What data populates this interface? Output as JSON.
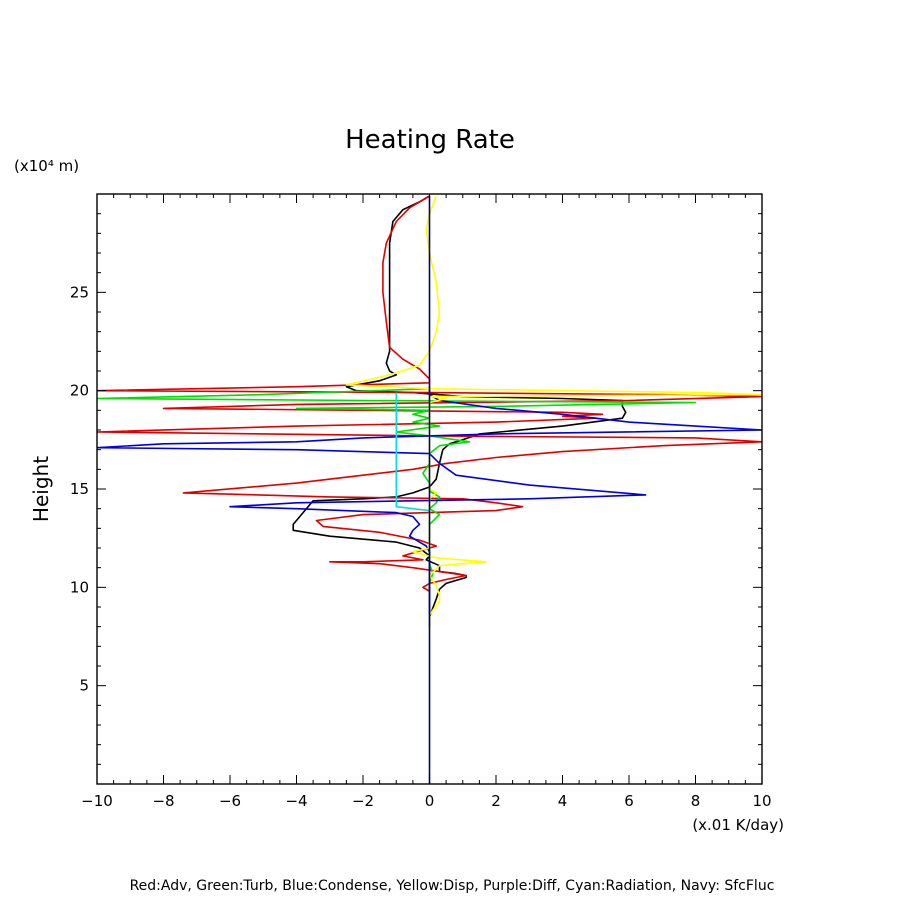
{
  "chart_data": {
    "type": "line",
    "title": "Heating Rate",
    "xlabel": "(x.01 K/day)",
    "ylabel": "Height",
    "yunit": "(x10⁴ m)",
    "legend_note": "Red:Adv, Green:Turb, Blue:Condense, Yellow:Disp, Purple:Diff, Cyan:Radiation, Navy: SfcFluc",
    "xlim": [
      -10,
      10
    ],
    "ylim": [
      0,
      30
    ],
    "xticks": [
      -10,
      -8,
      -6,
      -4,
      -2,
      0,
      2,
      4,
      6,
      8,
      10
    ],
    "yticks": [
      5,
      10,
      15,
      20,
      25
    ],
    "grid": false,
    "series": [
      {
        "name": "Adv",
        "color": "#000000",
        "points": [
          [
            0,
            29.9
          ],
          [
            -0.3,
            29.6
          ],
          [
            -0.8,
            29.2
          ],
          [
            -1.1,
            28.6
          ],
          [
            -1.2,
            27.5
          ],
          [
            -1.2,
            26
          ],
          [
            -1.2,
            24.5
          ],
          [
            -1.2,
            23
          ],
          [
            -1.2,
            22
          ],
          [
            -1.3,
            21.4
          ],
          [
            -1.2,
            21
          ],
          [
            -1.0,
            20.8
          ],
          [
            -1.5,
            20.5
          ],
          [
            -2.5,
            20.2
          ],
          [
            -2.2,
            20.0
          ],
          [
            -0.5,
            19.9
          ],
          [
            1,
            19.7
          ],
          [
            4,
            19.6
          ],
          [
            5.8,
            19.5
          ],
          [
            5.8,
            19.2
          ],
          [
            5.9,
            18.9
          ],
          [
            5.8,
            18.6
          ],
          [
            4,
            18.2
          ],
          [
            1.5,
            17.8
          ],
          [
            1.0,
            17.5
          ],
          [
            0.6,
            17.3
          ],
          [
            0.4,
            17.0
          ],
          [
            0.3,
            16.3
          ],
          [
            0.2,
            15.5
          ],
          [
            0,
            15.1
          ],
          [
            -0.5,
            14.8
          ],
          [
            -1.0,
            14.6
          ],
          [
            -2,
            14.5
          ],
          [
            -3.5,
            14.4
          ],
          [
            -3.8,
            13.8
          ],
          [
            -4.1,
            13.2
          ],
          [
            -4.1,
            12.9
          ],
          [
            -3,
            12.6
          ],
          [
            -1,
            12.3
          ],
          [
            -0.3,
            12.0
          ],
          [
            0,
            11.6
          ],
          [
            -0.1,
            11.4
          ],
          [
            0.3,
            11.1
          ],
          [
            0.3,
            10.8
          ],
          [
            0.8,
            10.7
          ],
          [
            1.1,
            10.6
          ],
          [
            1.1,
            10.5
          ],
          [
            0.5,
            10.2
          ],
          [
            0.3,
            9.9
          ],
          [
            0.2,
            9.4
          ],
          [
            0,
            8.5
          ],
          [
            0,
            8
          ]
        ]
      },
      {
        "name": "Adv",
        "color": "#e00000",
        "points": [
          [
            0,
            29.9
          ],
          [
            -0.6,
            29.3
          ],
          [
            -1,
            28.6
          ],
          [
            -1.3,
            27.5
          ],
          [
            -1.4,
            26.5
          ],
          [
            -1.4,
            25
          ],
          [
            -1.3,
            23.5
          ],
          [
            -1.2,
            22.2
          ],
          [
            -0.8,
            21.6
          ],
          [
            -0.3,
            21.1
          ],
          [
            0,
            20.6
          ],
          [
            0,
            20.4
          ],
          [
            -4,
            20.2
          ],
          [
            -10,
            20.0
          ],
          [
            0,
            19.9
          ],
          [
            7,
            19.8
          ],
          [
            10,
            19.7
          ],
          [
            6,
            19.5
          ],
          [
            -4,
            19.3
          ],
          [
            -8,
            19.1
          ],
          [
            -2,
            19.0
          ],
          [
            4,
            18.9
          ],
          [
            5.2,
            18.8
          ],
          [
            4,
            18.7
          ],
          [
            5,
            18.6
          ],
          [
            2,
            18.4
          ],
          [
            -4,
            18.2
          ],
          [
            -10,
            17.9
          ],
          [
            0,
            17.7
          ],
          [
            8,
            17.6
          ],
          [
            10,
            17.4
          ],
          [
            7,
            17.2
          ],
          [
            4,
            16.9
          ],
          [
            2,
            16.6
          ],
          [
            0.5,
            16.3
          ],
          [
            -0.5,
            16.0
          ],
          [
            -2,
            15.7
          ],
          [
            -4,
            15.3
          ],
          [
            -7.4,
            14.8
          ],
          [
            -3,
            14.6
          ],
          [
            1,
            14.5
          ],
          [
            2,
            14.3
          ],
          [
            2.8,
            14.1
          ],
          [
            2,
            13.9
          ],
          [
            0,
            13.8
          ],
          [
            -2,
            13.7
          ],
          [
            -3.4,
            13.4
          ],
          [
            -3.2,
            13.1
          ],
          [
            -1.5,
            12.8
          ],
          [
            -0.3,
            12.4
          ],
          [
            0.2,
            12.1
          ],
          [
            -0.8,
            11.6
          ],
          [
            -0.2,
            11.4
          ],
          [
            -2,
            11.3
          ],
          [
            -3,
            11.3
          ],
          [
            -1.5,
            11.2
          ],
          [
            -0.5,
            11.0
          ],
          [
            0.3,
            10.8
          ],
          [
            1.1,
            10.6
          ],
          [
            0.5,
            10.4
          ],
          [
            0,
            10.2
          ],
          [
            -0.2,
            10.0
          ],
          [
            0,
            9.8
          ]
        ]
      },
      {
        "name": "Turb",
        "color": "#00e000",
        "points": [
          [
            0,
            20.1
          ],
          [
            -5,
            19.8
          ],
          [
            -10,
            19.6
          ],
          [
            -2,
            19.5
          ],
          [
            8,
            19.4
          ],
          [
            2,
            19.2
          ],
          [
            -4,
            19.1
          ],
          [
            0,
            19.0
          ],
          [
            -0.5,
            18.8
          ],
          [
            0,
            18.6
          ],
          [
            -0.5,
            18.4
          ],
          [
            0.3,
            18.2
          ],
          [
            -1,
            17.9
          ],
          [
            0,
            17.7
          ],
          [
            1.2,
            17.4
          ],
          [
            0.3,
            17.2
          ],
          [
            0,
            16.8
          ],
          [
            0,
            16.3
          ],
          [
            -0.2,
            15.8
          ],
          [
            0,
            15.3
          ],
          [
            0,
            14.9
          ],
          [
            0.3,
            14.6
          ],
          [
            0.2,
            14.3
          ],
          [
            0,
            14.0
          ],
          [
            0.3,
            13.7
          ],
          [
            0,
            13.2
          ],
          [
            0,
            12.7
          ],
          [
            0,
            12.2
          ],
          [
            0,
            11.7
          ],
          [
            0,
            11.2
          ],
          [
            0.1,
            10.7
          ],
          [
            0,
            10.2
          ],
          [
            0,
            9.8
          ]
        ]
      },
      {
        "name": "Condense",
        "color": "#0000e0",
        "points": [
          [
            0,
            20.2
          ],
          [
            0,
            19.8
          ],
          [
            0.3,
            19.5
          ],
          [
            2,
            19.1
          ],
          [
            4,
            18.8
          ],
          [
            6,
            18.4
          ],
          [
            8,
            18.2
          ],
          [
            10,
            18.0
          ],
          [
            2,
            17.8
          ],
          [
            -2,
            17.6
          ],
          [
            -4,
            17.4
          ],
          [
            -8,
            17.3
          ],
          [
            -10,
            17.1
          ],
          [
            -4,
            17.0
          ],
          [
            0,
            16.8
          ],
          [
            0.3,
            16.3
          ],
          [
            0.8,
            15.7
          ],
          [
            3,
            15.2
          ],
          [
            6.5,
            14.7
          ],
          [
            3,
            14.5
          ],
          [
            -0.5,
            14.4
          ],
          [
            -4,
            14.3
          ],
          [
            -6,
            14.1
          ],
          [
            -4,
            14.0
          ],
          [
            -1,
            13.8
          ],
          [
            -0.5,
            13.6
          ],
          [
            -0.3,
            13.2
          ],
          [
            -0.5,
            12.9
          ],
          [
            -0.6,
            12.6
          ],
          [
            -0.3,
            12.3
          ],
          [
            -0.1,
            12.1
          ],
          [
            0,
            11.8
          ],
          [
            0,
            10
          ],
          [
            0,
            8
          ]
        ]
      },
      {
        "name": "Disp",
        "color": "#ffff00",
        "points": [
          [
            0.2,
            29.9
          ],
          [
            0,
            29
          ],
          [
            -0.1,
            28.2
          ],
          [
            0,
            27
          ],
          [
            0.2,
            25.5
          ],
          [
            0.3,
            24
          ],
          [
            0.2,
            23
          ],
          [
            0,
            22
          ],
          [
            -0.3,
            21.3
          ],
          [
            -1,
            20.9
          ],
          [
            -1.7,
            20.6
          ],
          [
            -2.5,
            20.3
          ],
          [
            0,
            20.1
          ],
          [
            8,
            19.9
          ],
          [
            10,
            19.8
          ],
          [
            0,
            19.7
          ],
          [
            0.5,
            19.6
          ],
          [
            0,
            19.4
          ],
          [
            0,
            18
          ],
          [
            0,
            16
          ],
          [
            0,
            15
          ],
          [
            0.2,
            14.8
          ],
          [
            0,
            14.5
          ],
          [
            0,
            14
          ],
          [
            0,
            13
          ],
          [
            0,
            12.5
          ],
          [
            0,
            12
          ],
          [
            -0.5,
            11.8
          ],
          [
            0.2,
            11.5
          ],
          [
            1.7,
            11.3
          ],
          [
            0.3,
            11.1
          ],
          [
            0,
            10.6
          ],
          [
            0.2,
            10.1
          ],
          [
            0.3,
            9.6
          ],
          [
            0.3,
            9.3
          ],
          [
            0,
            8.6
          ],
          [
            0,
            7.6
          ]
        ]
      },
      {
        "name": "Radiation",
        "color": "#00e0e0",
        "points": [
          [
            -1,
            19.9
          ],
          [
            -1,
            19.2
          ],
          [
            -1,
            18.5
          ],
          [
            -1,
            17.8
          ],
          [
            -1,
            17
          ],
          [
            -1,
            16
          ],
          [
            -1,
            15
          ],
          [
            -1,
            14.5
          ],
          [
            -1,
            14.1
          ],
          [
            -0.5,
            14.0
          ],
          [
            0,
            13.9
          ]
        ]
      },
      {
        "name": "SfcFluc",
        "color": "#000080",
        "points": [
          [
            0,
            29.9
          ],
          [
            0,
            0
          ]
        ]
      }
    ]
  }
}
